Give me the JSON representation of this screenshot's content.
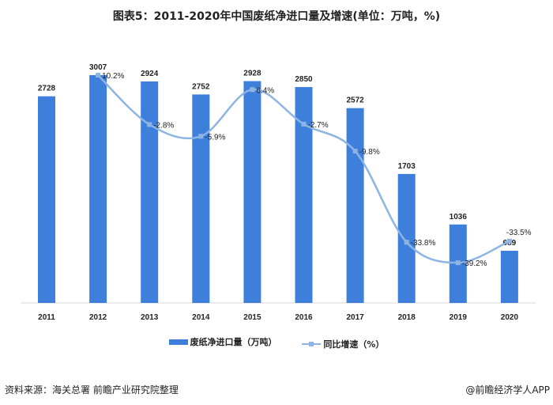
{
  "title": "图表5：2011-2020年中国废纸净进口量及增速(单位：万吨，%)",
  "chart_data": {
    "type": "bar+line",
    "title": "图表5：2011-2020年中国废纸净进口量及增速(单位：万吨，%)",
    "categories": [
      "2011",
      "2012",
      "2013",
      "2014",
      "2015",
      "2016",
      "2017",
      "2018",
      "2019",
      "2020"
    ],
    "series": [
      {
        "name": "废纸净进口量（万吨）",
        "type": "bar",
        "color": "#3f7fdc",
        "values": [
          2728,
          3007,
          2924,
          2752,
          2928,
          2850,
          2572,
          1703,
          1036,
          689
        ],
        "labels": [
          "2728",
          "3007",
          "2924",
          "2752",
          "2928",
          "2850",
          "2572",
          "1703",
          "1036",
          "689"
        ]
      },
      {
        "name": "同比增速（%）",
        "type": "line",
        "color": "#8db4e2",
        "values": [
          null,
          10.2,
          -2.8,
          -5.9,
          6.4,
          -2.7,
          -9.8,
          -33.8,
          -39.2,
          -33.5
        ],
        "labels": [
          "",
          "10.2%",
          "-2.8%",
          "-5.9%",
          "6.4%",
          "-2.7%",
          "-9.8%",
          "-33.8%",
          "-39.2%",
          "-33.5%"
        ]
      }
    ],
    "legend_position": "bottom",
    "grid": false
  },
  "footer": {
    "source": "资料来源：海关总署 前瞻产业研究院整理",
    "brand": "@前瞻经济学人APP"
  }
}
